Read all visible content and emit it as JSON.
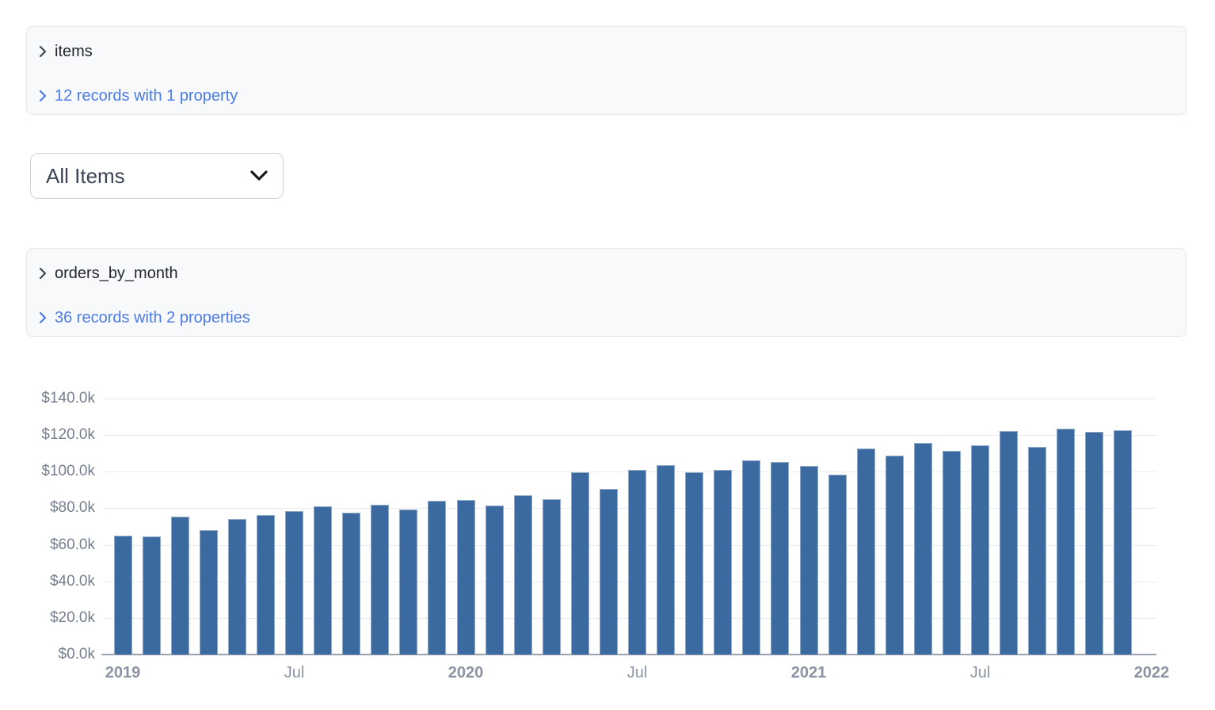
{
  "panels": [
    {
      "title": "items",
      "records_link": "12 records with 1 property"
    },
    {
      "title": "orders_by_month",
      "records_link": "36 records with 2 properties"
    }
  ],
  "filter": {
    "selected": "All Items"
  },
  "colors": {
    "panel_bg": "#f8f9fb",
    "panel_border": "#e5e7eb",
    "link_blue": "#4b7bea",
    "bar_fill": "#3a6a9f",
    "bar_edge": "#8fa9c9",
    "gridline": "#e9ebf0",
    "axis_line": "#9aa2ae",
    "y_label": "#767f8e",
    "x_label": "#8b93a2"
  },
  "chart_data": {
    "type": "bar",
    "title": "",
    "xlabel": "",
    "ylabel": "",
    "value_unit": "USD thousands",
    "ylim": [
      0,
      140
    ],
    "grid": "horizontal",
    "legend": "none",
    "categories": [
      "Jan 2019",
      "Feb 2019",
      "Mar 2019",
      "Apr 2019",
      "May 2019",
      "Jun 2019",
      "Jul 2019",
      "Aug 2019",
      "Sep 2019",
      "Oct 2019",
      "Nov 2019",
      "Dec 2019",
      "Jan 2020",
      "Feb 2020",
      "Mar 2020",
      "Apr 2020",
      "May 2020",
      "Jun 2020",
      "Jul 2020",
      "Aug 2020",
      "Sep 2020",
      "Oct 2020",
      "Nov 2020",
      "Dec 2020",
      "Jan 2021",
      "Feb 2021",
      "Mar 2021",
      "Apr 2021",
      "May 2021",
      "Jun 2021",
      "Jul 2021",
      "Aug 2021",
      "Sep 2021",
      "Oct 2021",
      "Nov 2021",
      "Dec 2021"
    ],
    "values": [
      65.2,
      64.4,
      75.4,
      68.1,
      74.2,
      76.4,
      78.3,
      81.1,
      77.8,
      82.1,
      79.4,
      83.9,
      84.4,
      81.6,
      87.1,
      84.8,
      99.6,
      90.5,
      101.1,
      103.7,
      99.7,
      100.9,
      106.4,
      105.2,
      103.1,
      98.3,
      112.8,
      109.0,
      115.7,
      111.4,
      114.5,
      122.4,
      113.7,
      123.4,
      121.8,
      122.6
    ],
    "y_ticks": [
      {
        "value": 0,
        "label": "$0.0k"
      },
      {
        "value": 20,
        "label": "$20.0k"
      },
      {
        "value": 40,
        "label": "$40.0k"
      },
      {
        "value": 60,
        "label": "$60.0k"
      },
      {
        "value": 80,
        "label": "$80.0k"
      },
      {
        "value": 100,
        "label": "$100.0k"
      },
      {
        "value": 120,
        "label": "$120.0k"
      },
      {
        "value": 140,
        "label": "$140.0k"
      }
    ],
    "x_ticks": [
      {
        "label": "2019",
        "month_index": 0,
        "bold": true
      },
      {
        "label": "Jul",
        "month_index": 6,
        "bold": false
      },
      {
        "label": "2020",
        "month_index": 12,
        "bold": true
      },
      {
        "label": "Jul",
        "month_index": 18,
        "bold": false
      },
      {
        "label": "2021",
        "month_index": 24,
        "bold": true
      },
      {
        "label": "Jul",
        "month_index": 30,
        "bold": false
      },
      {
        "label": "2022",
        "month_index": 36,
        "bold": true
      }
    ]
  }
}
